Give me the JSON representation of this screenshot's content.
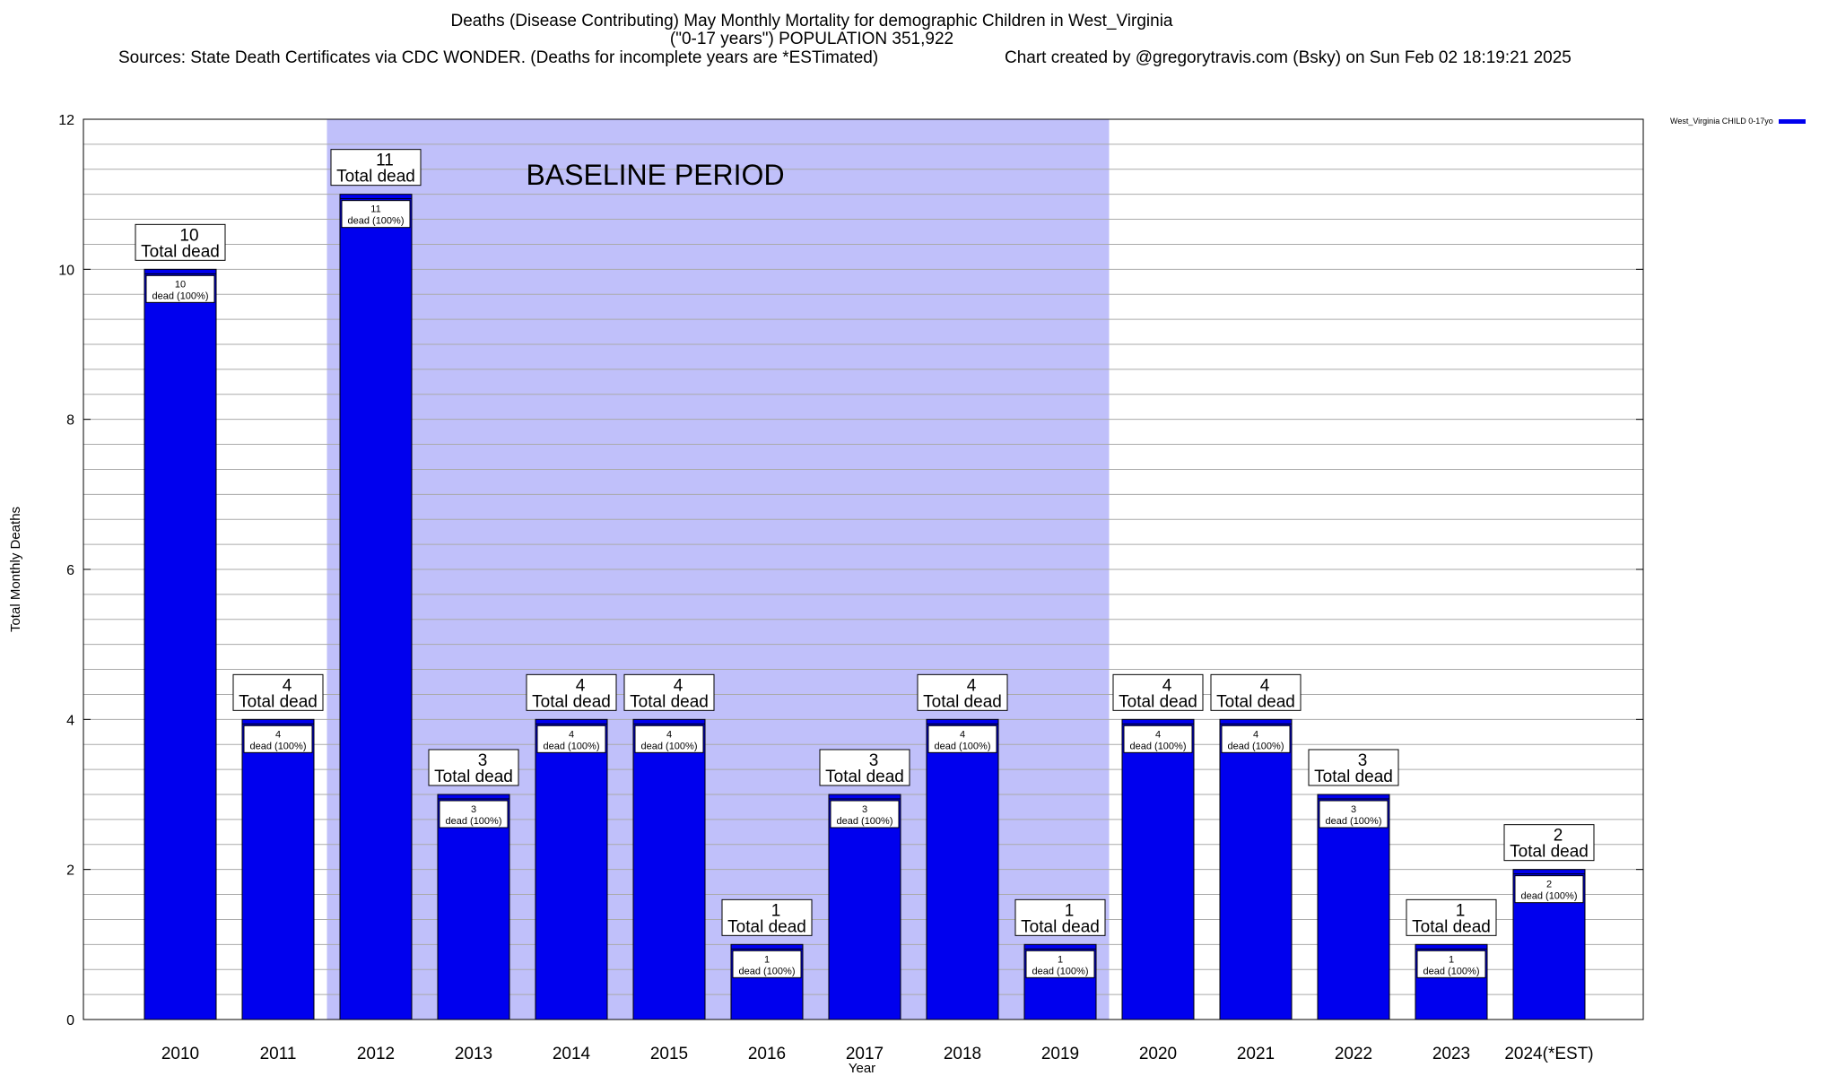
{
  "header": {
    "title": "Deaths (Disease Contributing) May Monthly Mortality for demographic Children in West_Virginia",
    "subtitle": "(\"0-17 years\") POPULATION 351,922",
    "sources": "Sources: State Death Certificates via CDC WONDER. (Deaths for incomplete years are *ESTimated)",
    "created": "Chart created by @gregorytravis.com (Bsky) on Sun Feb 02 18:19:21 2025"
  },
  "legend": {
    "label": "West_Virginia CHILD 0-17yo"
  },
  "colors": {
    "bar": "#0000ee",
    "baseline": "#c0c0fa",
    "grid": "#aaaaaa"
  },
  "chart_data": {
    "type": "bar",
    "categories": [
      "2010",
      "2011",
      "2012",
      "2013",
      "2014",
      "2015",
      "2016",
      "2017",
      "2018",
      "2019",
      "2020",
      "2021",
      "2022",
      "2023",
      "2024(*EST)"
    ],
    "series": [
      {
        "name": "West_Virginia CHILD 0-17yo",
        "values": [
          10,
          4,
          11,
          3,
          4,
          4,
          1,
          3,
          4,
          1,
          4,
          4,
          3,
          1,
          2
        ]
      }
    ],
    "xlabel": "Year",
    "ylabel": "Total Monthly Deaths",
    "ylim": [
      0,
      12
    ],
    "yticks": [
      0,
      2,
      4,
      6,
      8,
      10,
      12
    ],
    "grid": true,
    "legend_position": "top-right",
    "baseline_region": {
      "label": "BASELINE PERIOD",
      "start": "2012",
      "end": "2019"
    },
    "total_label_suffix": "Total dead",
    "inner_label_suffix": "dead (100%)"
  }
}
